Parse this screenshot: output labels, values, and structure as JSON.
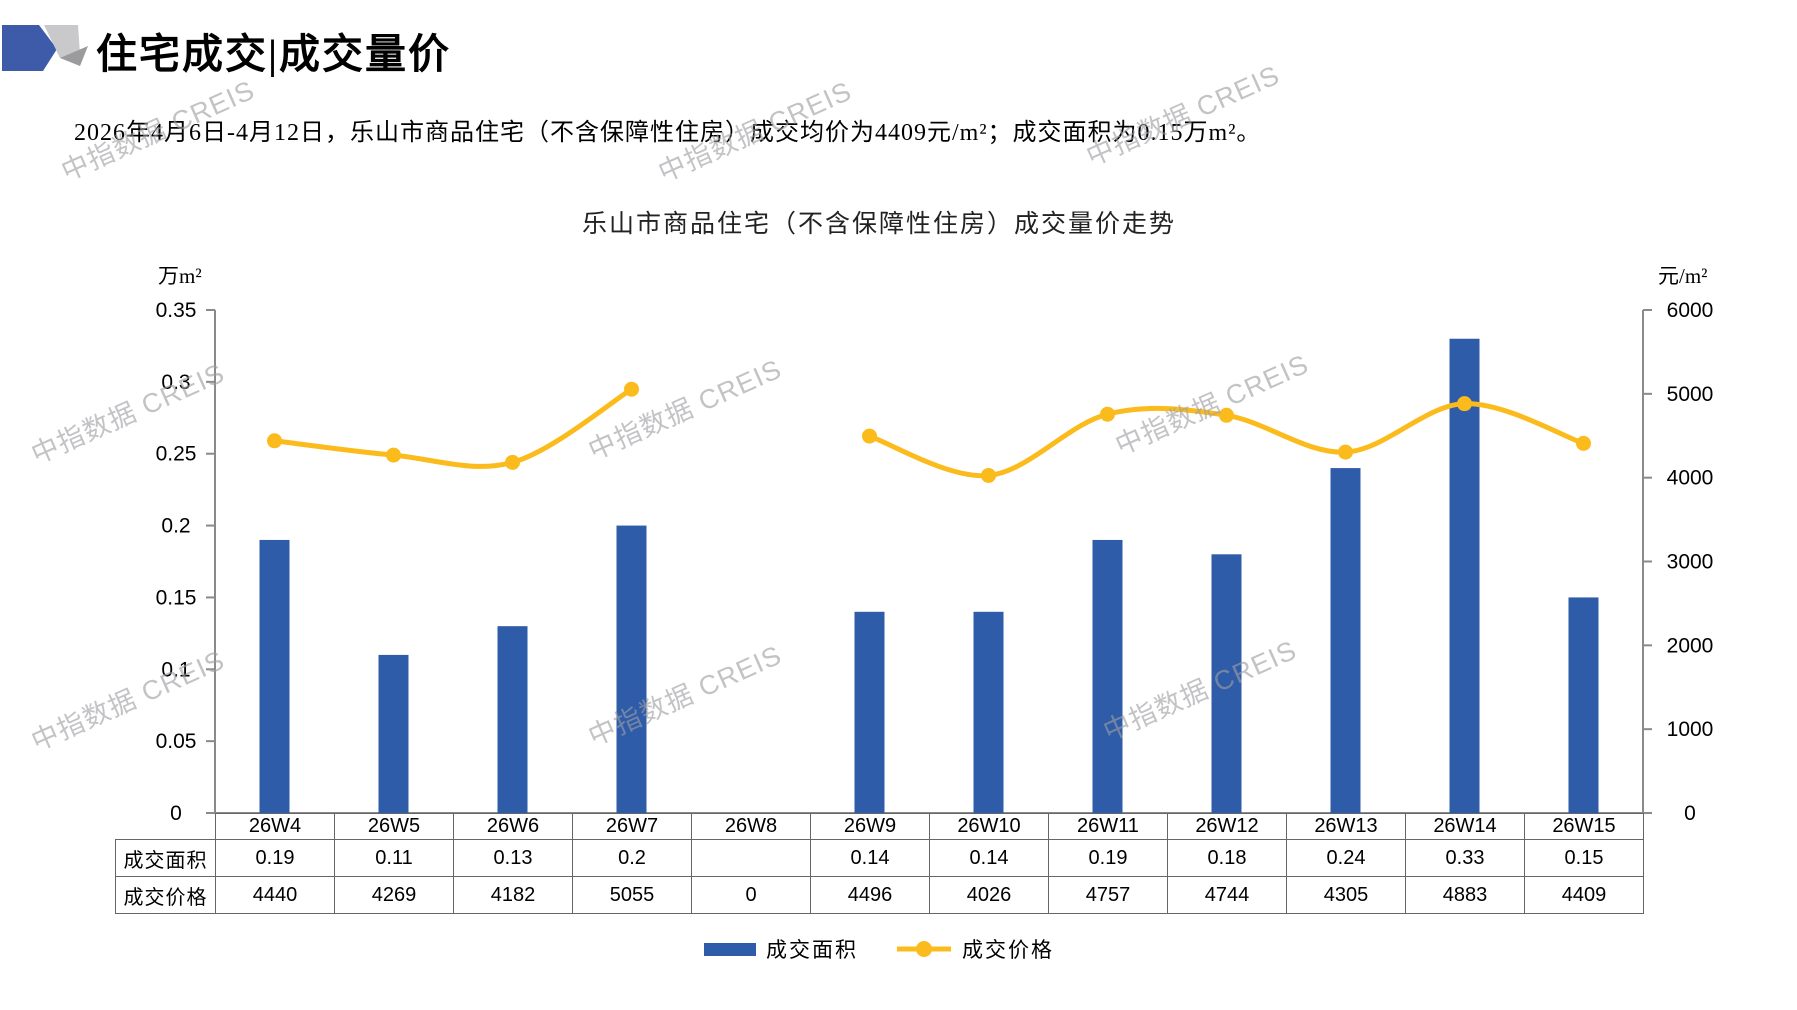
{
  "header": {
    "title": "住宅成交|成交量价",
    "subtitle": "2026年4月6日-4月12日，乐山市商品住宅（不含保障性住房）成交均价为4409元/m²；成交面积为0.15万m²。"
  },
  "watermark": {
    "text": "中指数据 CREIS"
  },
  "chart_data": {
    "type": "bar+line",
    "title": "乐山市商品住宅（不含保障性住房）成交量价走势",
    "categories": [
      "26W4",
      "26W5",
      "26W6",
      "26W7",
      "26W8",
      "26W9",
      "26W10",
      "26W11",
      "26W12",
      "26W13",
      "26W14",
      "26W15"
    ],
    "series": [
      {
        "name": "成交面积",
        "type": "bar",
        "axis": "left",
        "values": [
          0.19,
          0.11,
          0.13,
          0.2,
          null,
          0.14,
          0.14,
          0.19,
          0.18,
          0.24,
          0.33,
          0.15
        ]
      },
      {
        "name": "成交价格",
        "type": "line",
        "axis": "right",
        "values": [
          4440,
          4269,
          4182,
          5055,
          null,
          4496,
          4026,
          4757,
          4744,
          4305,
          4883,
          4409
        ]
      }
    ],
    "left_axis": {
      "unit": "万m²",
      "min": 0,
      "max": 0.35,
      "ticks": [
        0.35,
        0.3,
        0.25,
        0.2,
        0.15,
        0.1,
        0.05,
        0
      ],
      "tick_labels": [
        "0.35",
        "0.3",
        "0.25",
        "0.2",
        "0.15",
        "0.1",
        "0.05",
        "0"
      ]
    },
    "right_axis": {
      "unit": "元/m²",
      "min": 0,
      "max": 6000,
      "ticks": [
        6000,
        5000,
        4000,
        3000,
        2000,
        1000,
        0
      ],
      "tick_labels": [
        "6000",
        "5000",
        "4000",
        "3000",
        "2000",
        "1000",
        "0"
      ]
    },
    "legend": [
      {
        "label": "成交面积",
        "type": "bar"
      },
      {
        "label": "成交价格",
        "type": "line"
      }
    ],
    "legend_position": "bottom",
    "grid": false
  },
  "table": {
    "row_labels": [
      "成交面积",
      "成交价格"
    ],
    "area_values": [
      "0.19",
      "0.11",
      "0.13",
      "0.2",
      "",
      "0.14",
      "0.14",
      "0.19",
      "0.18",
      "0.24",
      "0.33",
      "0.15"
    ],
    "price_values": [
      "4440",
      "4269",
      "4182",
      "5055",
      "0",
      "4496",
      "4026",
      "4757",
      "4744",
      "4305",
      "4883",
      "4409"
    ]
  },
  "colors": {
    "bar": "#2F5CA8",
    "line": "#FBBB1C",
    "axis": "#8a8a8a",
    "logo_blue": "#3D5BA9",
    "logo_light_gray": "#C9C9CB",
    "logo_dark_gray": "#9B9B9D"
  }
}
